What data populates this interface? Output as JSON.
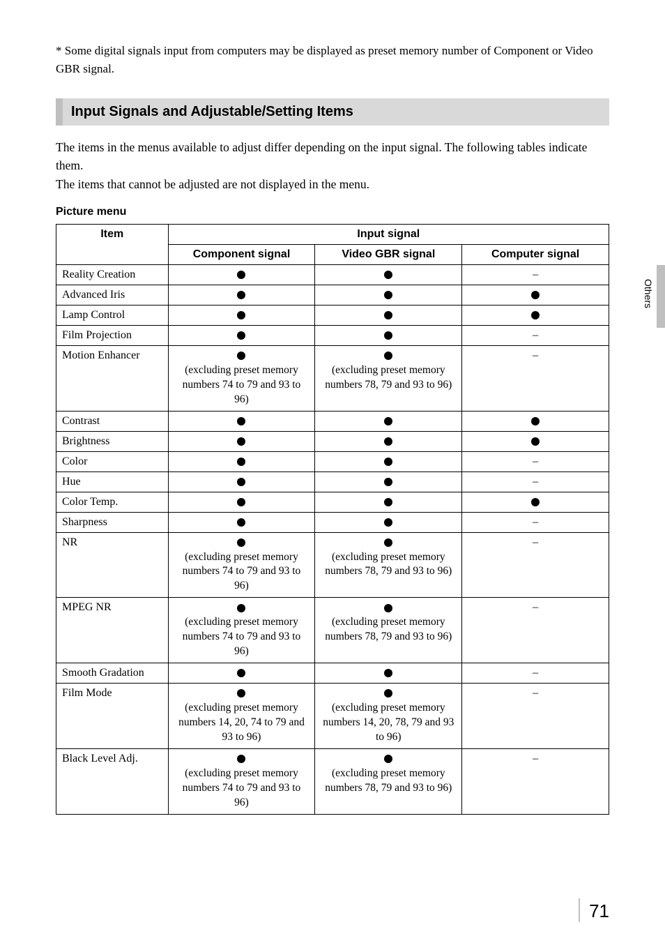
{
  "footnote": "* Some digital signals input from computers may be displayed as preset memory number of Component or Video GBR signal.",
  "section_heading": "Input Signals and Adjustable/Setting Items",
  "intro_p1": "The items in the menus available to adjust differ depending on the input signal. The following tables indicate them.",
  "intro_p2": "The items that cannot be adjusted are not displayed in the menu.",
  "subheading": "Picture menu",
  "side_tab": "Others",
  "page_number": "71",
  "table": {
    "header_item": "Item",
    "header_input": "Input signal",
    "col_component": "Component signal",
    "col_video_gbr": "Video GBR signal",
    "col_computer": "Computer signal",
    "dash": "–",
    "rows": [
      {
        "item": "Reality Creation",
        "c1": "dot",
        "c1_note": "",
        "c2": "dot",
        "c2_note": "",
        "c3": "dash",
        "c3_note": ""
      },
      {
        "item": "Advanced Iris",
        "c1": "dot",
        "c1_note": "",
        "c2": "dot",
        "c2_note": "",
        "c3": "dot",
        "c3_note": ""
      },
      {
        "item": "Lamp Control",
        "c1": "dot",
        "c1_note": "",
        "c2": "dot",
        "c2_note": "",
        "c3": "dot",
        "c3_note": ""
      },
      {
        "item": "Film Projection",
        "c1": "dot",
        "c1_note": "",
        "c2": "dot",
        "c2_note": "",
        "c3": "dash",
        "c3_note": ""
      },
      {
        "item": "Motion Enhancer",
        "c1": "dot",
        "c1_note": "(excluding preset memory numbers 74 to 79 and 93 to 96)",
        "c2": "dot",
        "c2_note": "(excluding preset memory numbers 78, 79 and 93 to 96)",
        "c3": "dash",
        "c3_note": ""
      },
      {
        "item": "Contrast",
        "c1": "dot",
        "c1_note": "",
        "c2": "dot",
        "c2_note": "",
        "c3": "dot",
        "c3_note": ""
      },
      {
        "item": "Brightness",
        "c1": "dot",
        "c1_note": "",
        "c2": "dot",
        "c2_note": "",
        "c3": "dot",
        "c3_note": ""
      },
      {
        "item": "Color",
        "c1": "dot",
        "c1_note": "",
        "c2": "dot",
        "c2_note": "",
        "c3": "dash",
        "c3_note": ""
      },
      {
        "item": "Hue",
        "c1": "dot",
        "c1_note": "",
        "c2": "dot",
        "c2_note": "",
        "c3": "dash",
        "c3_note": ""
      },
      {
        "item": "Color Temp.",
        "c1": "dot",
        "c1_note": "",
        "c2": "dot",
        "c2_note": "",
        "c3": "dot",
        "c3_note": ""
      },
      {
        "item": "Sharpness",
        "c1": "dot",
        "c1_note": "",
        "c2": "dot",
        "c2_note": "",
        "c3": "dash",
        "c3_note": ""
      },
      {
        "item": "NR",
        "c1": "dot",
        "c1_note": "(excluding preset memory numbers 74 to 79 and 93 to 96)",
        "c2": "dot",
        "c2_note": "(excluding preset memory numbers 78, 79 and 93 to 96)",
        "c3": "dash",
        "c3_note": ""
      },
      {
        "item": "MPEG NR",
        "c1": "dot",
        "c1_note": "(excluding preset memory numbers 74 to 79 and 93 to 96)",
        "c2": "dot",
        "c2_note": "(excluding preset memory numbers 78, 79 and 93 to 96)",
        "c3": "dash",
        "c3_note": ""
      },
      {
        "item": "Smooth Gradation",
        "c1": "dot",
        "c1_note": "",
        "c2": "dot",
        "c2_note": "",
        "c3": "dash",
        "c3_note": ""
      },
      {
        "item": "Film Mode",
        "c1": "dot",
        "c1_note": "(excluding preset memory numbers 14, 20, 74 to 79 and 93 to 96)",
        "c2": "dot",
        "c2_note": "(excluding preset memory numbers 14, 20, 78, 79 and 93 to 96)",
        "c3": "dash",
        "c3_note": ""
      },
      {
        "item": "Black Level Adj.",
        "c1": "dot",
        "c1_note": "(excluding preset memory numbers 74 to 79 and 93 to 96)",
        "c2": "dot",
        "c2_note": "(excluding preset memory numbers 78, 79 and 93 to 96)",
        "c3": "dash",
        "c3_note": ""
      }
    ]
  }
}
